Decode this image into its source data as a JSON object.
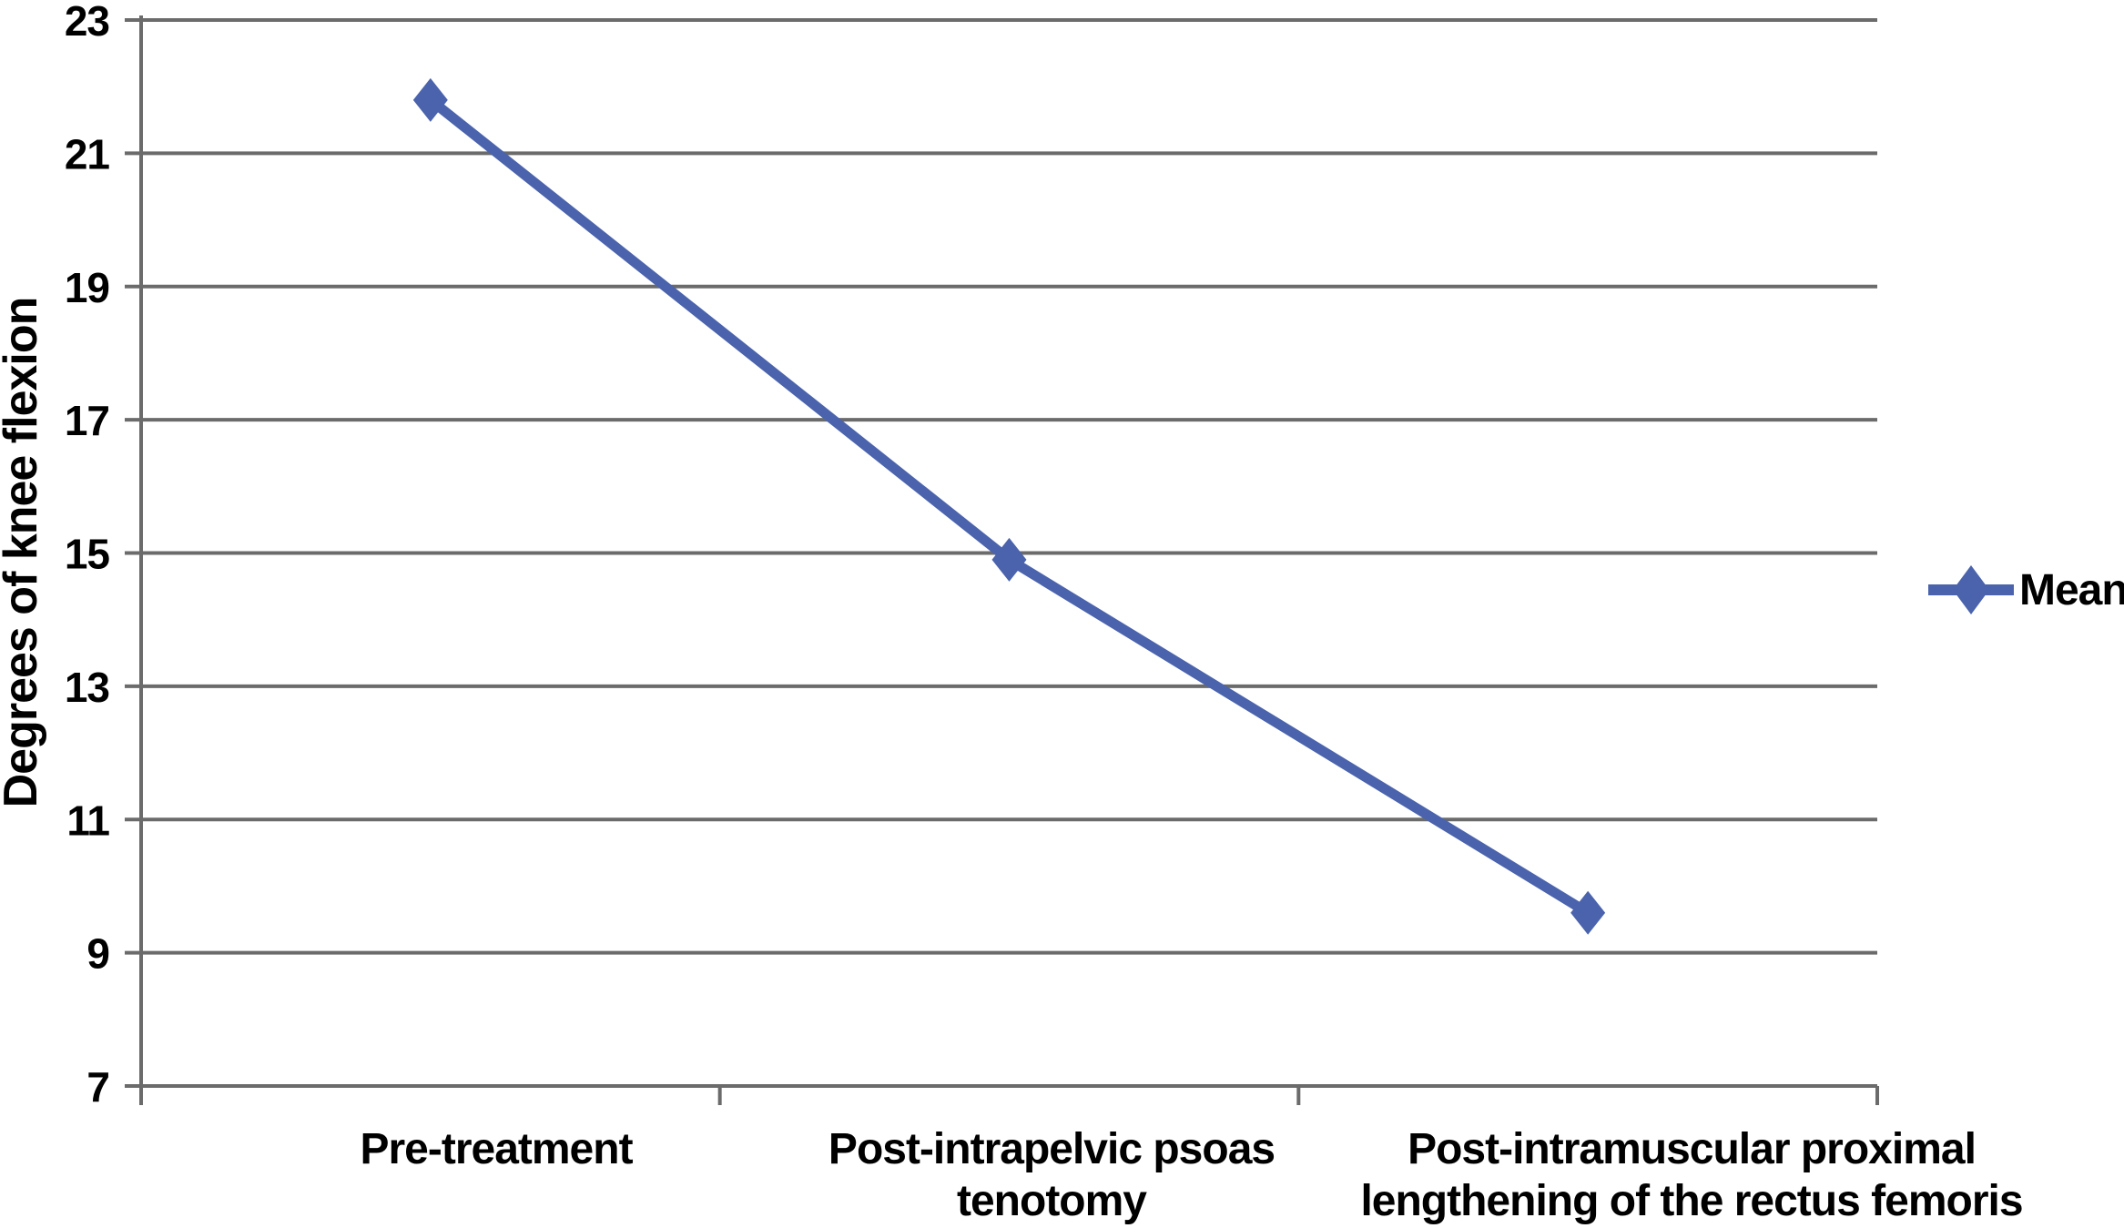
{
  "chart_data": {
    "type": "line",
    "title": "",
    "categories": [
      "Pre-treatment",
      "Post-intrapelvic psoas tenotomy",
      "Post-intramuscular proximal lengthening of the rectus femoris"
    ],
    "category_lines": [
      [
        "Pre-treatment"
      ],
      [
        "Post-intrapelvic psoas",
        "tenotomy"
      ],
      [
        "Post-intramuscular proximal",
        "lengthening of the rectus femoris"
      ]
    ],
    "series": [
      {
        "name": "Mean",
        "values": [
          21.8,
          14.9,
          9.6
        ],
        "marker": "diamond",
        "color": "#4a63ac"
      }
    ],
    "xlabel": "",
    "ylabel": "Degrees of knee flexion",
    "ylim": [
      7,
      23
    ],
    "yticks": [
      7,
      9,
      11,
      13,
      15,
      17,
      19,
      21,
      23
    ],
    "grid": "horizontal",
    "legend": {
      "position": "right",
      "entries": [
        "Mean"
      ]
    },
    "colors": {
      "line": "#4a63ac",
      "gridline": "#6b6b6b",
      "axis": "#6b6b6b",
      "text": "#000000",
      "background": "#ffffff"
    }
  }
}
